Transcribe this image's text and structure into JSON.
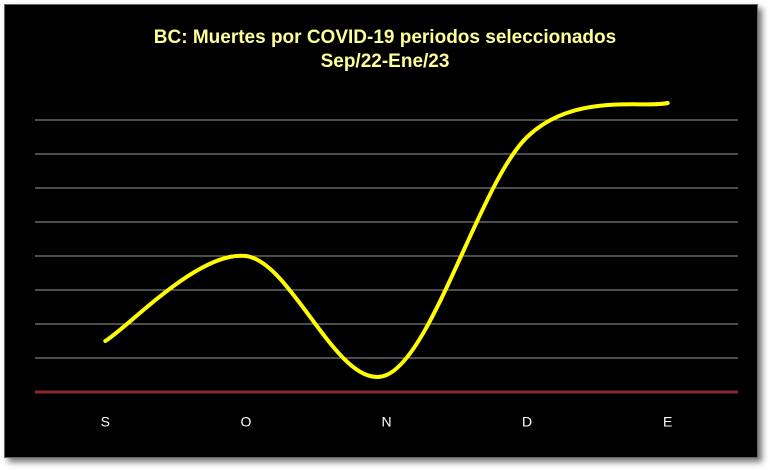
{
  "chart_data": {
    "type": "line",
    "title": "BC: Muertes por COVID-19 periodos seleccionados",
    "subtitle": "Sep/22-Ene/23",
    "categories": [
      "S",
      "O",
      "N",
      "D",
      "E"
    ],
    "series": [
      {
        "name": "Muertes",
        "color": "#ffff00",
        "values": [
          1.5,
          4,
          0.5,
          7.5,
          8.5
        ]
      }
    ],
    "ylim": [
      0,
      9
    ],
    "yticks": [
      0,
      1,
      2,
      3,
      4,
      5,
      6,
      7,
      8
    ],
    "grid": true,
    "grid_color": "#9a9a9a",
    "axis_color": "#8b2a2a"
  }
}
